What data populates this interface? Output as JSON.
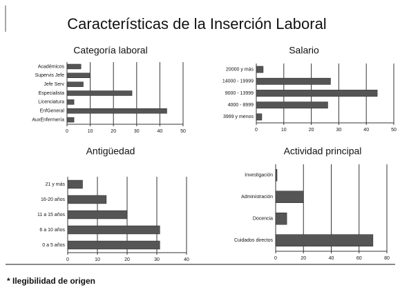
{
  "title": "Características de la Inserción Laboral",
  "footnote": "* Ilegibilidad de origen",
  "chart_data": [
    {
      "type": "bar",
      "orientation": "horizontal",
      "title": "Categoría laboral",
      "categories": [
        "Académicos",
        "Supervis Jefe",
        "Jefe Serv",
        "Especialista",
        "Licenciatura",
        "EnfGeneral",
        "AuxEnfermería"
      ],
      "values": [
        6,
        10,
        7,
        28,
        3,
        43,
        3
      ],
      "color": "#555555",
      "xlim": [
        0,
        50
      ],
      "xticks": [
        0,
        10,
        20,
        30,
        40,
        50
      ],
      "grid": true
    },
    {
      "type": "bar",
      "orientation": "horizontal",
      "title": "Salario",
      "categories": [
        "20000 y más",
        "14000 - 19999",
        "9000 - 13999",
        "4000 - 8999",
        "3999 y menos"
      ],
      "values": [
        2.5,
        27,
        44,
        26,
        2
      ],
      "color": "#555555",
      "xlim": [
        0,
        50
      ],
      "xticks": [
        0,
        10,
        20,
        30,
        40,
        50
      ],
      "grid": true
    },
    {
      "type": "bar",
      "orientation": "horizontal",
      "title": "Antigüedad",
      "categories": [
        "21 y más",
        "16-20 años",
        "11 a 15 años",
        "6 a 10 años",
        "0 a 5 años"
      ],
      "values": [
        5,
        13,
        20,
        31,
        31
      ],
      "color": "#555555",
      "xlim": [
        0,
        40
      ],
      "xticks": [
        0,
        10,
        20,
        30,
        40
      ],
      "grid": true
    },
    {
      "type": "bar",
      "orientation": "horizontal",
      "title": "Actividad principal",
      "categories": [
        "Investigación",
        "Administración",
        "Docencia",
        "Cuidados directos"
      ],
      "values": [
        1,
        20,
        8,
        70
      ],
      "color": "#555555",
      "xlim": [
        0,
        80
      ],
      "xticks": [
        0,
        20,
        40,
        60,
        80
      ],
      "grid": true
    }
  ]
}
